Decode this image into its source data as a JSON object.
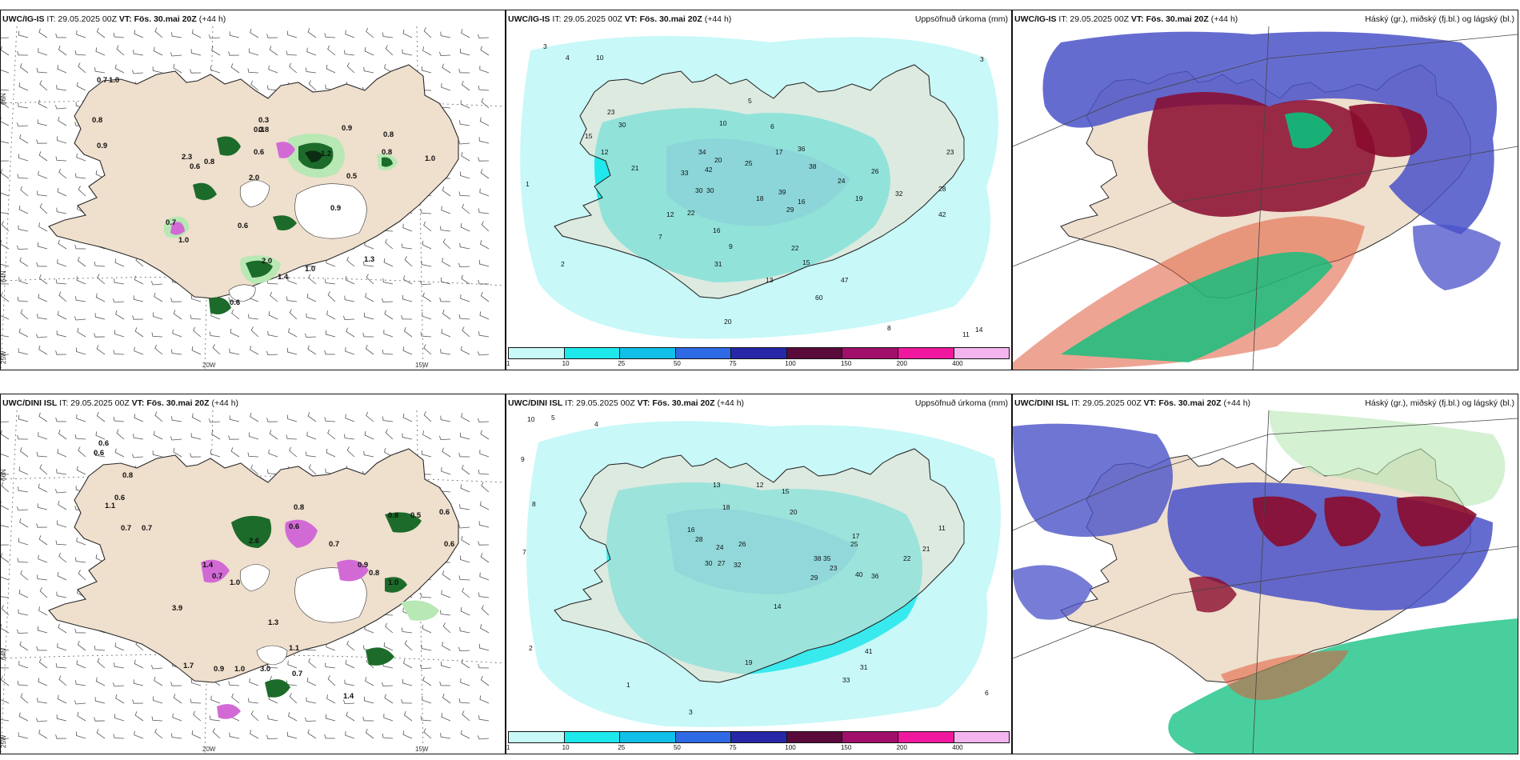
{
  "panels": {
    "ig_wind": {
      "model": "UWC/IG-IS",
      "it": "IT: 29.05.2025 00Z",
      "vt_label": "VT:",
      "vt": "Fös. 30.mai 20Z",
      "lead": "(+44 h)"
    },
    "ig_precip": {
      "model": "UWC/IG-IS",
      "it": "IT: 29.05.2025 00Z",
      "vt_label": "VT:",
      "vt": "Fös. 30.mai 20Z",
      "lead": "(+44 h)",
      "right_title": "Uppsöfnuð úrkoma (mm)"
    },
    "ig_cloud": {
      "model": "UWC/IG-IS",
      "it": "IT: 29.05.2025 00Z",
      "vt_label": "VT:",
      "vt": "Fös. 30.mai 20Z",
      "lead": "(+44 h)",
      "right_title": "Háský (gr.), miðský (fj.bl.) og lágský (bl.)"
    },
    "dini_wind": {
      "model": "UWC/DINI ISL",
      "it": "IT: 29.05.2025 00Z",
      "vt_label": "VT:",
      "vt": "Fös. 30.mai 20Z",
      "lead": "(+44 h)"
    },
    "dini_precip": {
      "model": "UWC/DINI ISL",
      "it": "IT: 29.05.2025 00Z",
      "vt_label": "VT:",
      "vt": "Fös. 30.mai 20Z",
      "lead": "(+44 h)",
      "right_title": "Uppsöfnuð úrkoma (mm)"
    },
    "dini_cloud": {
      "model": "UWC/DINI ISL",
      "it": "IT: 29.05.2025 00Z",
      "vt_label": "VT:",
      "vt": "Fös. 30.mai 20Z",
      "lead": "(+44 h)",
      "right_title": "Háský (gr.), miðský (fj.bl.) og lágský (bl.)"
    }
  },
  "axes": {
    "lat_66": "66N",
    "lat_64": "64N",
    "lon_25": "25W",
    "lon_20": "20W",
    "lon_15": "15W"
  },
  "precip_colorbar": {
    "ticks": [
      "1",
      "10",
      "25",
      "50",
      "75",
      "100",
      "150",
      "200",
      "400"
    ],
    "colors": [
      "#c8f8f8",
      "#1ee8ec",
      "#10c0e8",
      "#2f6ae6",
      "#2628a8",
      "#5a0a3a",
      "#a0106a",
      "#f0189e",
      "#f4b4ee"
    ]
  },
  "wind_panels": {
    "ig_values": [
      "0.7",
      "1.0",
      "0.8",
      "0.9",
      "0.8",
      "0.9",
      "1.2",
      "1.0",
      "0.5",
      "2.0",
      "0.9",
      "0.3",
      "0.6",
      "0.8",
      "1.0",
      "0.6",
      "0.8",
      "2.0",
      "1.3",
      "0.7",
      "0.6",
      "0.3",
      "0.8",
      "1.4",
      "2.3",
      "1.0",
      "0.6"
    ],
    "dini_values": [
      "0.6",
      "0.6",
      "0.8",
      "0.6",
      "1.1",
      "0.7",
      "0.7",
      "0.8",
      "0.6",
      "0.7",
      "0.8",
      "0.5",
      "0.6",
      "0.6",
      "1.0",
      "0.9",
      "0.8",
      "2.6",
      "1.4",
      "0.7",
      "3.9",
      "1.0",
      "0.9",
      "1.0",
      "1.3",
      "3.0",
      "0.7",
      "1.4",
      "1.7",
      "1.1"
    ]
  },
  "precip_panels": {
    "ig_values": [
      "3",
      "4",
      "10",
      "23",
      "15",
      "30",
      "12",
      "21",
      "34",
      "20",
      "42",
      "38",
      "24",
      "26",
      "28",
      "33",
      "32",
      "30",
      "22",
      "18",
      "39",
      "29",
      "16",
      "19",
      "23",
      "17",
      "42",
      "25",
      "36",
      "22",
      "10",
      "16",
      "30",
      "31",
      "60",
      "47",
      "13",
      "20",
      "15",
      "11",
      "6",
      "8",
      "7",
      "5",
      "2",
      "1",
      "3",
      "14",
      "12",
      "9"
    ],
    "dini_values": [
      "10",
      "5",
      "4",
      "8",
      "18",
      "13",
      "16",
      "12",
      "15",
      "20",
      "28",
      "24",
      "30",
      "27",
      "32",
      "26",
      "38",
      "35",
      "23",
      "40",
      "36",
      "22",
      "19",
      "17",
      "29",
      "31",
      "41",
      "21",
      "14",
      "11",
      "9",
      "7",
      "6",
      "3",
      "2",
      "1",
      "33",
      "25"
    ]
  },
  "colors": {
    "land": "#efdfcd",
    "coast": "#2a2a2a",
    "grid": "#666666"
  }
}
